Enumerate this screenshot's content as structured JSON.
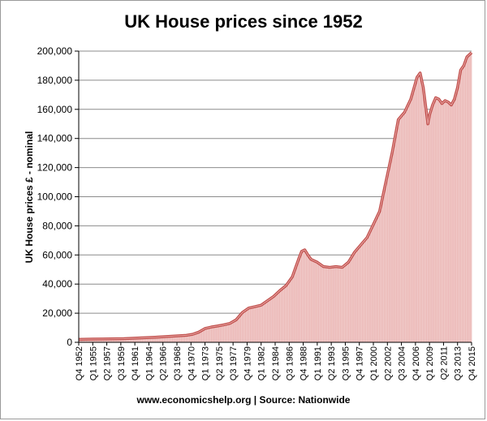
{
  "chart_data": {
    "type": "area",
    "title": "UK House prices since 1952",
    "ylabel": "UK House prices £ - nominal",
    "xlabel": "",
    "source": "www.economicshelp.org | Source: Nationwide",
    "ylim": [
      0,
      200000
    ],
    "yticks": [
      "0",
      "20,000",
      "40,000",
      "60,000",
      "80,000",
      "100,000",
      "120,000",
      "140,000",
      "160,000",
      "180,000",
      "200,000"
    ],
    "xtick_labels": [
      "Q4 1952",
      "Q1 1955",
      "Q2 1957",
      "Q3 1959",
      "Q4 1961",
      "Q1 1964",
      "Q2 1966",
      "Q3 1968",
      "Q4 1970",
      "Q1 1973",
      "Q2 1975",
      "Q3 1977",
      "Q4 1979",
      "Q1 1982",
      "Q2 1984",
      "Q3 1986",
      "Q4 1988",
      "Q1 1991",
      "Q2 1993",
      "Q3 1995",
      "Q4 1997",
      "Q1 2000",
      "Q2 2002",
      "Q3 2004",
      "Q4 2006",
      "Q1 2009",
      "Q2 2011",
      "Q3 2013",
      "Q4 2015"
    ],
    "grid": true,
    "line_color": "#c0504d",
    "fill_color": "#f2d0cf",
    "series": [
      {
        "x": [
          1952.75,
          1955,
          1960,
          1965,
          1970,
          1971,
          1972,
          1973,
          1974,
          1975,
          1976,
          1977,
          1978,
          1979,
          1980,
          1981,
          1982,
          1983,
          1984,
          1985,
          1986,
          1987,
          1988,
          1988.5,
          1989,
          1989.5,
          1990,
          1991,
          1992,
          1993,
          1994,
          1995,
          1996,
          1997,
          1998,
          1999,
          2000,
          2001,
          2002,
          2003,
          2004,
          2005,
          2006,
          2007,
          2007.5,
          2008,
          2008.75,
          2009,
          2009.5,
          2010,
          2010.5,
          2011,
          2011.5,
          2012,
          2012.5,
          2013,
          2013.5,
          2014,
          2014.5,
          2015,
          2015.75
        ],
        "values": [
          2000,
          2200,
          2500,
          3500,
          4800,
          5500,
          7000,
          9500,
          10500,
          11200,
          12000,
          13000,
          15500,
          20500,
          23500,
          24500,
          25500,
          28500,
          31500,
          35500,
          39000,
          45000,
          57000,
          62500,
          63500,
          60000,
          57000,
          55000,
          52000,
          51500,
          52000,
          51500,
          55000,
          62000,
          67000,
          72000,
          81000,
          90000,
          110000,
          130000,
          153000,
          158000,
          167000,
          182000,
          185000,
          175000,
          150000,
          156000,
          163000,
          168000,
          167000,
          164000,
          166000,
          165000,
          163000,
          167000,
          175000,
          187000,
          190000,
          196000,
          199000
        ]
      }
    ]
  }
}
